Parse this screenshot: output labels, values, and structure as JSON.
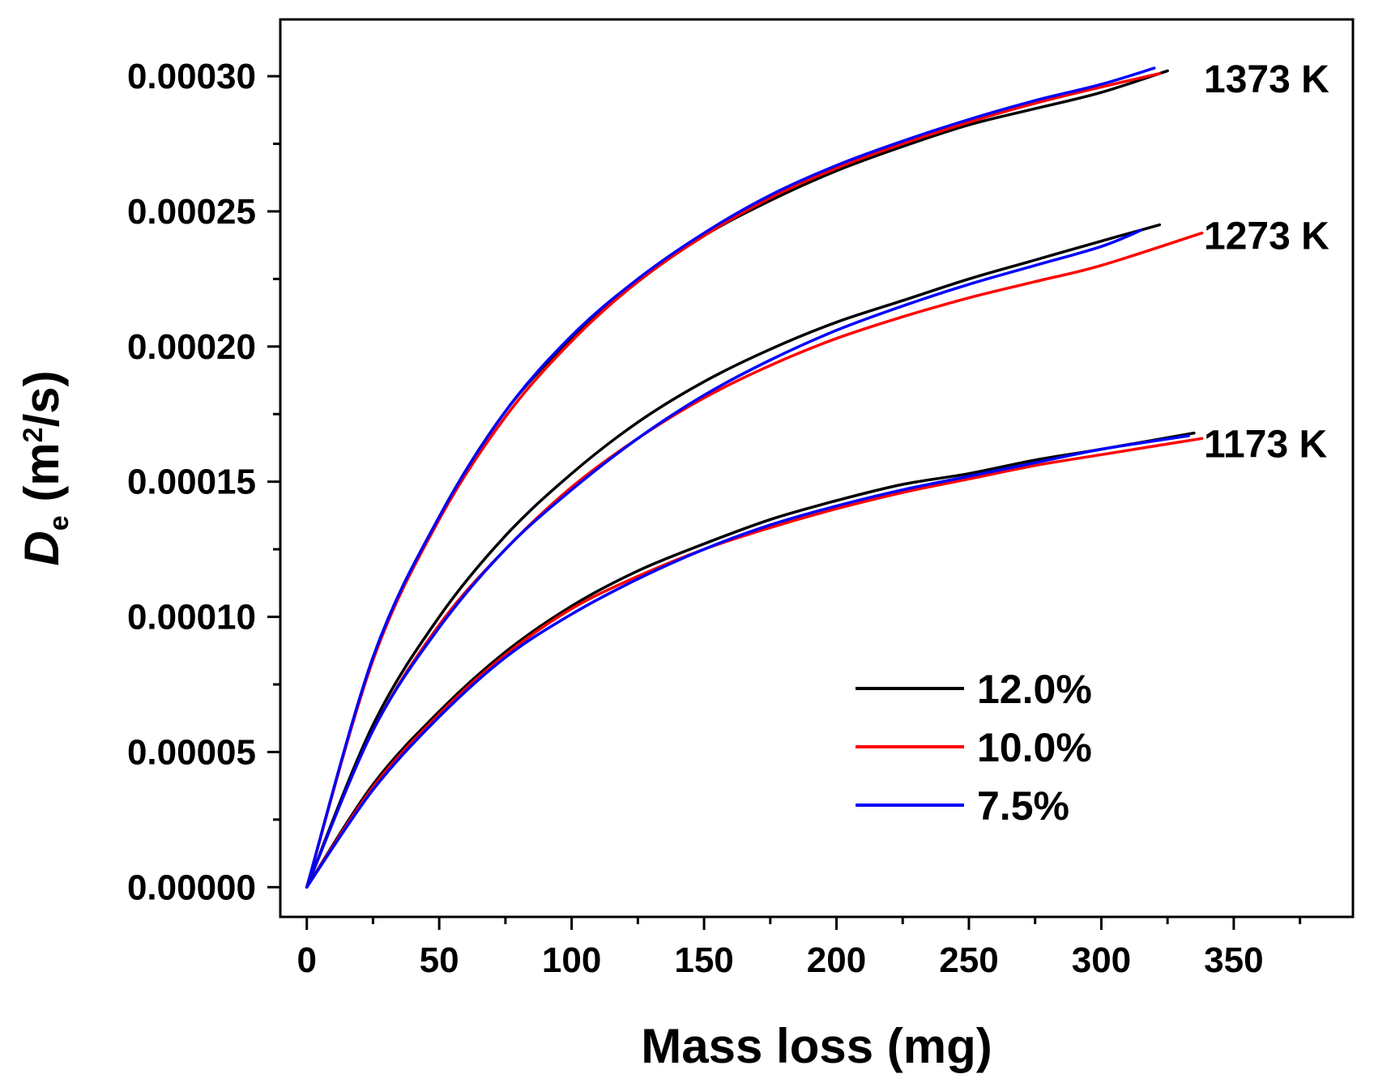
{
  "chart_data": {
    "type": "line",
    "xlabel": "Mass loss (mg)",
    "ylabel": {
      "symbol": "D",
      "subscript": "e",
      "unit_open": " (m",
      "superscript": "2",
      "unit_close": "/s)"
    },
    "xlim": [
      -10,
      395
    ],
    "ylim": [
      -1.1e-05,
      0.000321
    ],
    "xticks": [
      0,
      50,
      100,
      150,
      200,
      250,
      300,
      350
    ],
    "xtick_labels": [
      "0",
      "50",
      "100",
      "150",
      "200",
      "250",
      "300",
      "350"
    ],
    "yticks": [
      0,
      5e-05,
      0.0001,
      0.00015,
      0.0002,
      0.00025,
      0.0003
    ],
    "ytick_labels": [
      "0.00000",
      "0.00005",
      "0.00010",
      "0.00015",
      "0.00020",
      "0.00025",
      "0.00030"
    ],
    "grid": false,
    "legend_position": "lower-right",
    "legend": [
      {
        "label": "12.0%",
        "color": "#000000"
      },
      {
        "label": "10.0%",
        "color": "#ff0000"
      },
      {
        "label": " 7.5%",
        "color": "#0000ff"
      }
    ],
    "groups": [
      {
        "temperature_label": "1373 K",
        "series": [
          {
            "name": "12.0%",
            "color": "#000000",
            "x": [
              0,
              25,
              50,
              75,
              100,
              125,
              150,
              175,
              200,
              225,
              250,
              275,
              300,
              325
            ],
            "y": [
              0,
              8.5e-05,
              0.000137,
              0.000176,
              0.000203,
              0.000224,
              0.000241,
              0.000254,
              0.000265,
              0.000274,
              0.000282,
              0.000288,
              0.000294,
              0.000302
            ]
          },
          {
            "name": "10.0%",
            "color": "#ff0000",
            "x": [
              0,
              25,
              50,
              75,
              100,
              125,
              150,
              175,
              200,
              225,
              250,
              275,
              300,
              322
            ],
            "y": [
              0,
              8.4e-05,
              0.000136,
              0.000174,
              0.000202,
              0.000224,
              0.000241,
              0.000255,
              0.000266,
              0.000275,
              0.000283,
              0.00029,
              0.000296,
              0.000301
            ]
          },
          {
            "name": "7.5%",
            "color": "#0000ff",
            "x": [
              0,
              25,
              50,
              75,
              100,
              125,
              150,
              175,
              200,
              225,
              250,
              275,
              300,
              320
            ],
            "y": [
              0,
              8.5e-05,
              0.000137,
              0.000176,
              0.000204,
              0.000225,
              0.000242,
              0.000256,
              0.000267,
              0.000276,
              0.000284,
              0.000291,
              0.000297,
              0.000303
            ]
          }
        ]
      },
      {
        "temperature_label": "1273 K",
        "series": [
          {
            "name": "12.0%",
            "color": "#000000",
            "x": [
              0,
              25,
              50,
              75,
              100,
              125,
              150,
              175,
              200,
              225,
              250,
              275,
              300,
              322
            ],
            "y": [
              0,
              6e-05,
              0.0001,
              0.00013,
              0.000153,
              0.000172,
              0.000187,
              0.000199,
              0.000209,
              0.000217,
              0.000225,
              0.000232,
              0.000239,
              0.000245
            ]
          },
          {
            "name": "10.0%",
            "color": "#ff0000",
            "x": [
              0,
              25,
              50,
              75,
              100,
              125,
              150,
              175,
              200,
              225,
              250,
              275,
              300,
              338
            ],
            "y": [
              0,
              5.8e-05,
              9.7e-05,
              0.000125,
              0.000148,
              0.000166,
              0.000181,
              0.000193,
              0.000203,
              0.000211,
              0.000218,
              0.000224,
              0.00023,
              0.000242
            ]
          },
          {
            "name": "7.5%",
            "color": "#0000ff",
            "x": [
              0,
              25,
              50,
              75,
              100,
              125,
              150,
              175,
              200,
              225,
              250,
              275,
              300,
              315
            ],
            "y": [
              0,
              5.8e-05,
              9.6e-05,
              0.000125,
              0.000147,
              0.000166,
              0.000182,
              0.000195,
              0.000206,
              0.000215,
              0.000223,
              0.00023,
              0.000237,
              0.000243
            ]
          }
        ]
      },
      {
        "temperature_label": "1173 K",
        "series": [
          {
            "name": "12.0%",
            "color": "#000000",
            "x": [
              0,
              25,
              50,
              75,
              100,
              125,
              150,
              175,
              200,
              225,
              250,
              275,
              300,
              335
            ],
            "y": [
              0,
              3.8e-05,
              6.5e-05,
              8.7e-05,
              0.000104,
              0.000117,
              0.000127,
              0.000136,
              0.000143,
              0.000149,
              0.000153,
              0.000158,
              0.000162,
              0.000168
            ]
          },
          {
            "name": "10.0%",
            "color": "#ff0000",
            "x": [
              0,
              25,
              50,
              75,
              100,
              125,
              150,
              175,
              200,
              225,
              250,
              275,
              300,
              338
            ],
            "y": [
              0,
              3.7e-05,
              6.4e-05,
              8.6e-05,
              0.000103,
              0.000115,
              0.000125,
              0.000133,
              0.00014,
              0.000146,
              0.000151,
              0.000156,
              0.00016,
              0.000166
            ]
          },
          {
            "name": "7.5%",
            "color": "#0000ff",
            "x": [
              0,
              25,
              50,
              75,
              100,
              125,
              150,
              175,
              200,
              225,
              250,
              275,
              300,
              333
            ],
            "y": [
              0,
              3.6e-05,
              6.3e-05,
              8.5e-05,
              0.000101,
              0.000114,
              0.000125,
              0.000134,
              0.000141,
              0.000147,
              0.000152,
              0.000157,
              0.000162,
              0.000167
            ]
          }
        ]
      }
    ]
  }
}
